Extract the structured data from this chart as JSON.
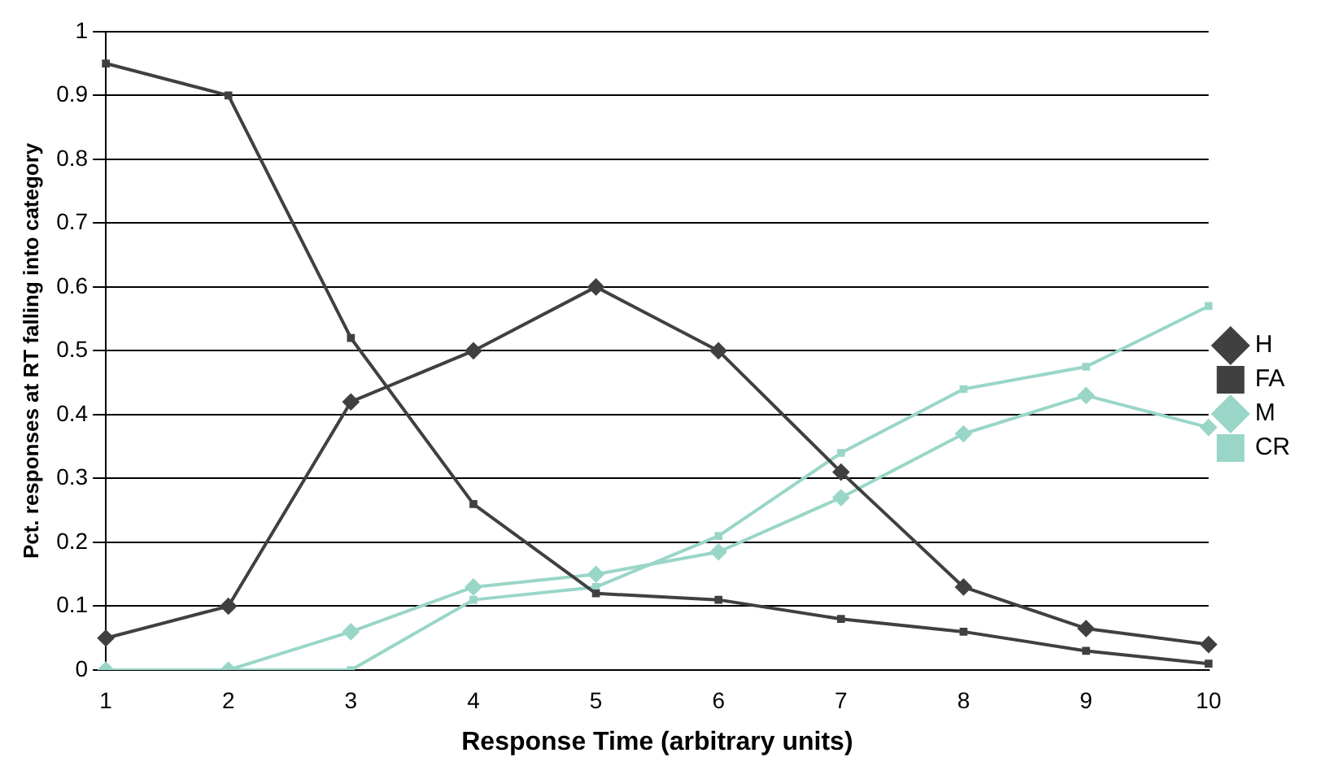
{
  "chart_data": {
    "type": "line",
    "xlabel": "Response Time (arbitrary units)",
    "ylabel": "Pct. responses at RT falling into category",
    "categories": [
      "1",
      "2",
      "3",
      "4",
      "5",
      "6",
      "7",
      "8",
      "9",
      "10"
    ],
    "series": [
      {
        "name": "H",
        "color": "#404040",
        "marker": "diamond",
        "values": [
          0.05,
          0.1,
          0.42,
          0.5,
          0.6,
          0.5,
          0.31,
          0.13,
          0.065,
          0.04
        ]
      },
      {
        "name": "FA",
        "color": "#404040",
        "marker": "square",
        "values": [
          0.95,
          0.9,
          0.52,
          0.26,
          0.12,
          0.11,
          0.08,
          0.06,
          0.03,
          0.01
        ]
      },
      {
        "name": "M",
        "color": "#99d6c8",
        "marker": "diamond",
        "values": [
          0,
          0,
          0.06,
          0.13,
          0.15,
          0.185,
          0.27,
          0.37,
          0.43,
          0.38
        ]
      },
      {
        "name": "CR",
        "color": "#99d6c8",
        "marker": "square",
        "values": [
          0,
          0,
          0,
          0.11,
          0.13,
          0.21,
          0.34,
          0.44,
          0.475,
          0.57
        ]
      }
    ],
    "ylim": [
      0,
      1
    ],
    "yticks": [
      0,
      0.1,
      0.2,
      0.3,
      0.4,
      0.5,
      0.6,
      0.7,
      0.8,
      0.9,
      1
    ],
    "grid": "y",
    "legend": "right",
    "line_style": "solid"
  }
}
